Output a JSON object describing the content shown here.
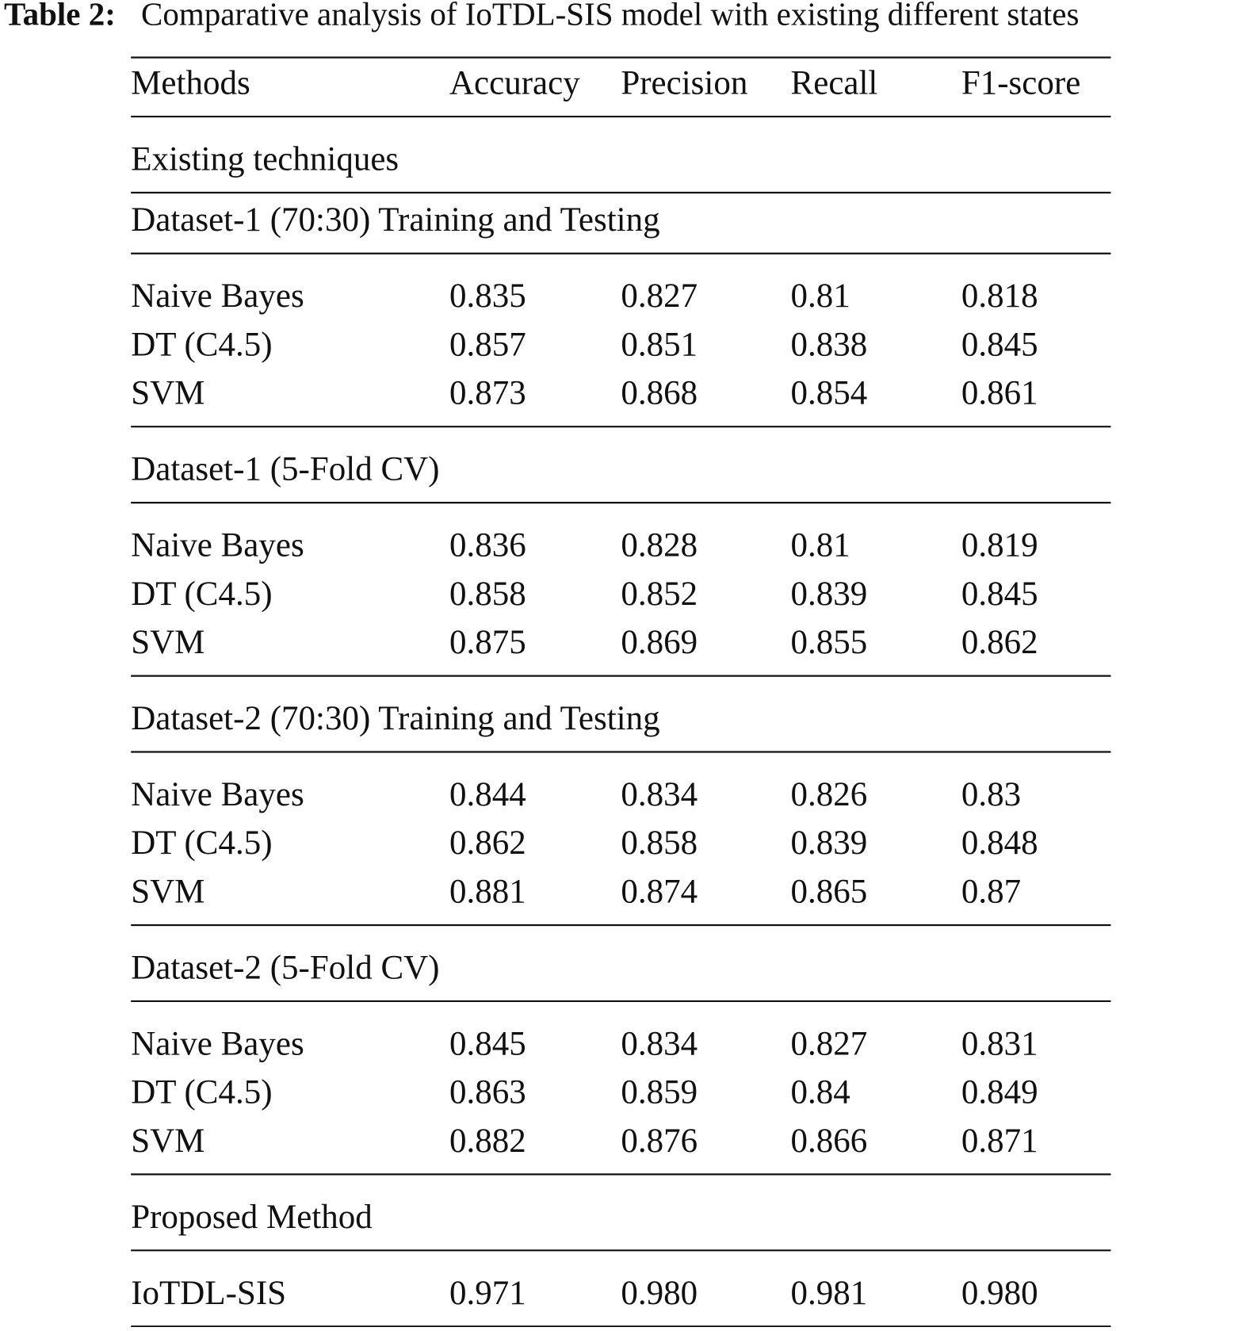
{
  "caption": {
    "label": "Table 2:",
    "text": "Comparative analysis of IoTDL-SIS model with existing different states"
  },
  "table": {
    "header": [
      "Methods",
      "Accuracy",
      "Precision",
      "Recall",
      "F1-score"
    ],
    "blocks": [
      {
        "title": "Existing techniques"
      },
      {
        "title": "Dataset-1 (70:30) Training and Testing",
        "rows": [
          [
            "Naive Bayes",
            "0.835",
            "0.827",
            "0.81",
            "0.818"
          ],
          [
            "DT (C4.5)",
            "0.857",
            "0.851",
            "0.838",
            "0.845"
          ],
          [
            "SVM",
            "0.873",
            "0.868",
            "0.854",
            "0.861"
          ]
        ]
      },
      {
        "title": "Dataset-1 (5-Fold CV)",
        "rows": [
          [
            "Naive Bayes",
            "0.836",
            "0.828",
            "0.81",
            "0.819"
          ],
          [
            "DT (C4.5)",
            "0.858",
            "0.852",
            "0.839",
            "0.845"
          ],
          [
            "SVM",
            "0.875",
            "0.869",
            "0.855",
            "0.862"
          ]
        ]
      },
      {
        "title": "Dataset-2 (70:30) Training and Testing",
        "rows": [
          [
            "Naive Bayes",
            "0.844",
            "0.834",
            "0.826",
            "0.83"
          ],
          [
            "DT (C4.5)",
            "0.862",
            "0.858",
            "0.839",
            "0.848"
          ],
          [
            "SVM",
            "0.881",
            "0.874",
            "0.865",
            "0.87"
          ]
        ]
      },
      {
        "title": "Dataset-2 (5-Fold CV)",
        "rows": [
          [
            "Naive Bayes",
            "0.845",
            "0.834",
            "0.827",
            "0.831"
          ],
          [
            "DT (C4.5)",
            "0.863",
            "0.859",
            "0.84",
            "0.849"
          ],
          [
            "SVM",
            "0.882",
            "0.876",
            "0.866",
            "0.871"
          ]
        ]
      },
      {
        "title": "Proposed Method",
        "rows": [
          [
            "IoTDL-SIS",
            "0.971",
            "0.980",
            "0.981",
            "0.980"
          ]
        ]
      }
    ]
  }
}
